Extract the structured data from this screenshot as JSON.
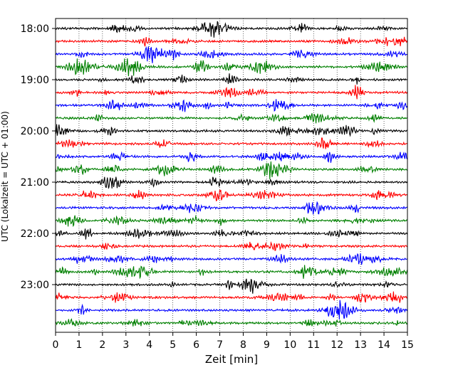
{
  "chart_data": {
    "type": "line",
    "title": "",
    "xlabel": "Zeit  [min]",
    "ylabel": "UTC (Lokalzeit = UTC + 01:00)",
    "xlim": [
      0,
      15
    ],
    "x_ticks": [
      0,
      1,
      2,
      3,
      4,
      5,
      6,
      7,
      8,
      9,
      10,
      11,
      12,
      13,
      14,
      15
    ],
    "y_ticks": [
      "18:00",
      "19:00",
      "20:00",
      "21:00",
      "22:00",
      "23:00"
    ],
    "grid": "vertical dotted lines at each minute",
    "trace_interval_minutes": 15,
    "start_time": "18:00",
    "end_time": "23:45",
    "trace_colors": [
      "#000000",
      "#ff0000",
      "#0000ff",
      "#008000"
    ],
    "series": [
      {
        "start": "18:00",
        "color": "#000000"
      },
      {
        "start": "18:15",
        "color": "#ff0000"
      },
      {
        "start": "18:30",
        "color": "#0000ff"
      },
      {
        "start": "18:45",
        "color": "#008000"
      },
      {
        "start": "19:00",
        "color": "#000000"
      },
      {
        "start": "19:15",
        "color": "#ff0000"
      },
      {
        "start": "19:30",
        "color": "#0000ff"
      },
      {
        "start": "19:45",
        "color": "#008000"
      },
      {
        "start": "20:00",
        "color": "#000000"
      },
      {
        "start": "20:15",
        "color": "#ff0000"
      },
      {
        "start": "20:30",
        "color": "#0000ff"
      },
      {
        "start": "20:45",
        "color": "#008000"
      },
      {
        "start": "21:00",
        "color": "#000000"
      },
      {
        "start": "21:15",
        "color": "#ff0000"
      },
      {
        "start": "21:30",
        "color": "#0000ff"
      },
      {
        "start": "21:45",
        "color": "#008000"
      },
      {
        "start": "22:00",
        "color": "#000000"
      },
      {
        "start": "22:15",
        "color": "#ff0000"
      },
      {
        "start": "22:30",
        "color": "#0000ff"
      },
      {
        "start": "22:45",
        "color": "#008000"
      },
      {
        "start": "23:00",
        "color": "#000000"
      },
      {
        "start": "23:15",
        "color": "#ff0000"
      },
      {
        "start": "23:30",
        "color": "#0000ff"
      },
      {
        "start": "23:45",
        "color": "#008000"
      }
    ]
  }
}
